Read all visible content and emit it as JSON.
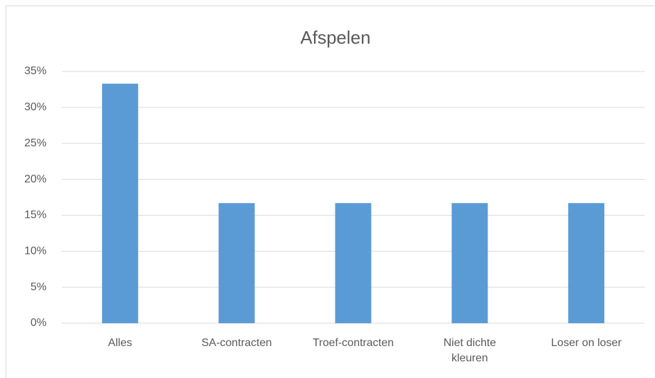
{
  "chart_data": {
    "type": "bar",
    "title": "Afspelen",
    "categories": [
      "Alles",
      "SA-contracten",
      "Troef-contracten",
      "Niet dichte kleuren",
      "Loser on loser"
    ],
    "values": [
      33.3,
      16.7,
      16.7,
      16.7,
      16.7
    ],
    "color": "#5b9bd5",
    "ylim": [
      0,
      35
    ],
    "yticks": [
      {
        "value": 0,
        "label": "0%"
      },
      {
        "value": 5,
        "label": "5%"
      },
      {
        "value": 10,
        "label": "10%"
      },
      {
        "value": 15,
        "label": "15%"
      },
      {
        "value": 20,
        "label": "20%"
      },
      {
        "value": 25,
        "label": "25%"
      },
      {
        "value": 30,
        "label": "30%"
      },
      {
        "value": 35,
        "label": "35%"
      }
    ],
    "grid": true
  }
}
